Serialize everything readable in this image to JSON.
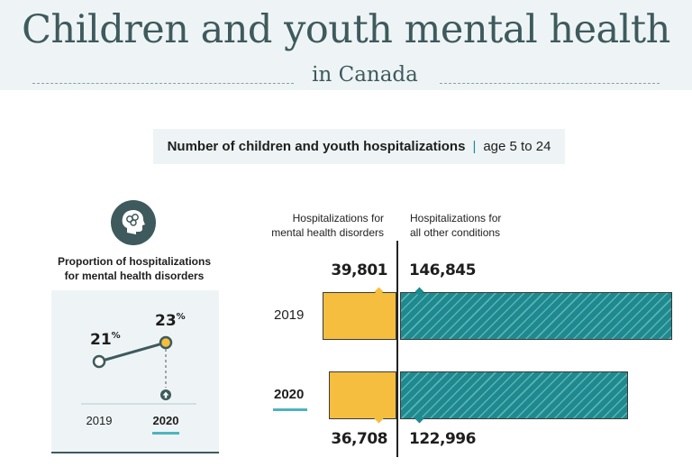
{
  "header": {
    "title": "Children and youth mental health",
    "subtitle": "in Canada"
  },
  "section": {
    "title": "Number of children and youth hospitalizations",
    "age_range": "age 5 to 24"
  },
  "proportion_panel": {
    "icon": "brain-head-icon",
    "title_line1": "Proportion of hospitalizations",
    "title_line2": "for mental health disorders",
    "years": [
      "2019",
      "2020"
    ],
    "values": [
      "21",
      "23"
    ],
    "unit": "%",
    "highlighted_year": "2020",
    "increase_icon": "up-arrow-icon"
  },
  "bar_panel": {
    "mental_header_line1": "Hospitalizations for",
    "mental_header_line2": "mental health disorders",
    "other_header_line1": "Hospitalizations for",
    "other_header_line2": "all other conditions",
    "highlighted_year": "2020"
  },
  "colors": {
    "mental": "#f5be3f",
    "other": "#1e8a8f",
    "accent": "#4fb3bf",
    "title": "#3e5a5d"
  },
  "chart_data": [
    {
      "type": "bar",
      "title": "Number of children and youth hospitalizations",
      "categories": [
        "2019",
        "2020"
      ],
      "series": [
        {
          "name": "Hospitalizations for mental health disorders",
          "values": [
            39801,
            36708
          ],
          "labels": [
            "39,801",
            "36,708"
          ]
        },
        {
          "name": "Hospitalizations for all other conditions",
          "values": [
            146845,
            122996
          ],
          "labels": [
            "146,845",
            "122,996"
          ]
        }
      ]
    },
    {
      "type": "line",
      "title": "Proportion of hospitalizations for mental health disorders",
      "x": [
        "2019",
        "2020"
      ],
      "series": [
        {
          "values": [
            21,
            23
          ]
        }
      ],
      "unit": "%"
    }
  ]
}
